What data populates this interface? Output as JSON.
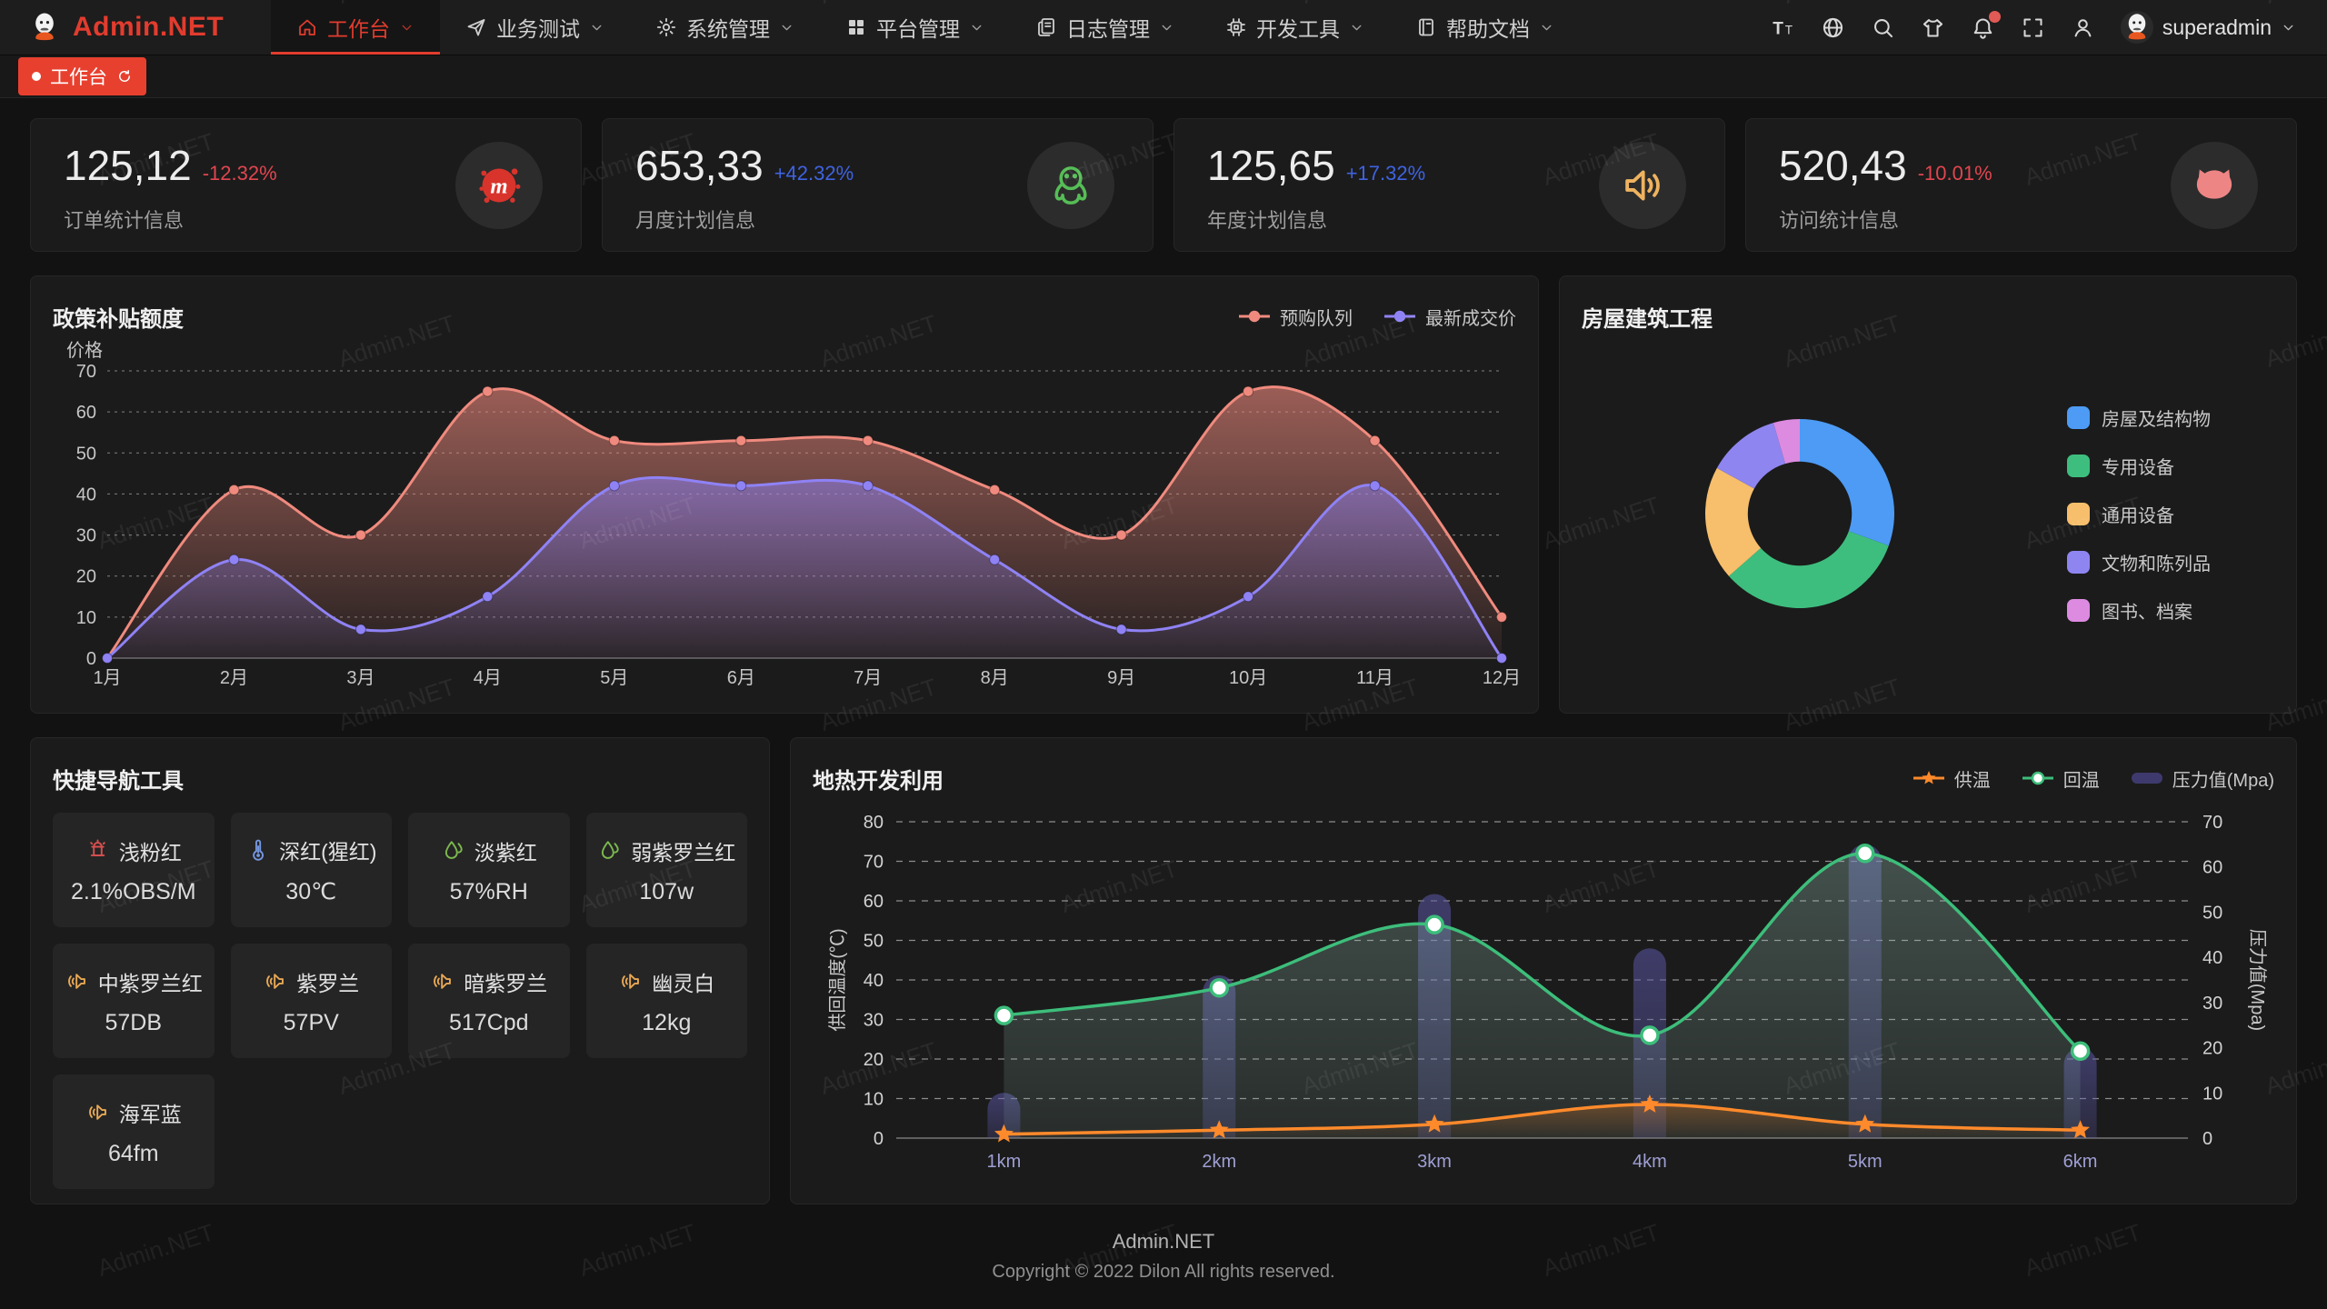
{
  "watermark": "Admin.NET",
  "topbar": {
    "brand": "Admin.NET",
    "menu": [
      {
        "id": "workbench",
        "label": "工作台",
        "icon": "home",
        "active": true
      },
      {
        "id": "business-test",
        "label": "业务测试",
        "icon": "send",
        "active": false
      },
      {
        "id": "system-mgmt",
        "label": "系统管理",
        "icon": "gear",
        "active": false
      },
      {
        "id": "platform-mgmt",
        "label": "平台管理",
        "icon": "grid",
        "active": false
      },
      {
        "id": "log-mgmt",
        "label": "日志管理",
        "icon": "copy-doc",
        "active": false
      },
      {
        "id": "dev-tools",
        "label": "开发工具",
        "icon": "chip",
        "active": false
      },
      {
        "id": "help-docs",
        "label": "帮助文档",
        "icon": "book",
        "active": false
      }
    ],
    "actions": [
      {
        "id": "font-size",
        "icon": "font-size",
        "badge": false
      },
      {
        "id": "language",
        "icon": "language",
        "badge": false
      },
      {
        "id": "search",
        "icon": "search",
        "badge": false
      },
      {
        "id": "theme",
        "icon": "theme-shirt",
        "badge": false
      },
      {
        "id": "notifications",
        "icon": "bell",
        "badge": true
      },
      {
        "id": "fullscreen",
        "icon": "fullscreen",
        "badge": false
      },
      {
        "id": "profile",
        "icon": "user",
        "badge": false
      }
    ],
    "user": "superadmin"
  },
  "tabbar": {
    "active_tab": "工作台"
  },
  "stat_cards": [
    {
      "id": "orders",
      "value": "125,12",
      "delta": "-12.32%",
      "trend": "down",
      "label": "订单统计信息",
      "icon": "meetup",
      "icon_color": "#d8342c"
    },
    {
      "id": "monthly-plan",
      "value": "653,33",
      "delta": "+42.32%",
      "trend": "up",
      "label": "月度计划信息",
      "icon": "qq",
      "icon_color": "#56bd56"
    },
    {
      "id": "yearly-plan",
      "value": "125,65",
      "delta": "+17.32%",
      "trend": "up",
      "label": "年度计划信息",
      "icon": "speaker",
      "icon_color": "#efb35f"
    },
    {
      "id": "visits",
      "value": "520,43",
      "delta": "-10.01%",
      "trend": "down",
      "label": "访问统计信息",
      "icon": "cat",
      "icon_color": "#ee8585"
    }
  ],
  "chart_data": [
    {
      "key": "area",
      "type": "area",
      "title": "政策补贴额度",
      "y_axis_name": "价格",
      "categories": [
        "1月",
        "2月",
        "3月",
        "4月",
        "5月",
        "6月",
        "7月",
        "8月",
        "9月",
        "10月",
        "11月",
        "12月"
      ],
      "ylim": [
        0,
        70
      ],
      "ystep": 10,
      "grid": "dashed",
      "legend_position": "top-right",
      "series": [
        {
          "name": "预购队列",
          "color": "#F08A7E",
          "values": [
            0,
            41,
            30,
            65,
            53,
            53,
            53,
            41,
            30,
            65,
            53,
            10
          ]
        },
        {
          "name": "最新成交价",
          "color": "#8F82F5",
          "values": [
            0,
            24,
            7,
            15,
            42,
            42,
            42,
            24,
            7,
            15,
            42,
            0
          ]
        }
      ]
    },
    {
      "key": "donut",
      "type": "pie",
      "title": "房屋建筑工程",
      "inner_radius_ratio": 0.55,
      "legend_position": "right",
      "items": [
        {
          "label": "房屋及结构物",
          "value": 30.5,
          "color": "#4D9BF4"
        },
        {
          "label": "专用设备",
          "value": 33,
          "color": "#3EBE7E"
        },
        {
          "label": "通用设备",
          "value": 19.5,
          "color": "#F7BE6B"
        },
        {
          "label": "文物和陈列品",
          "value": 12.5,
          "color": "#8F85F0"
        },
        {
          "label": "图书、档案",
          "value": 4.5,
          "color": "#DC8BE0"
        }
      ]
    },
    {
      "key": "dual",
      "type": "line+bar",
      "title": "地热开发利用",
      "categories": [
        "1km",
        "2km",
        "3km",
        "4km",
        "5km",
        "6km"
      ],
      "left_axis": {
        "name": "供回温度(℃)",
        "min": 0,
        "max": 80,
        "step": 10
      },
      "right_axis": {
        "name": "压力值(Mpa)",
        "min": 0,
        "max": 70,
        "step": 10
      },
      "grid": "dashed",
      "legend_position": "top-right",
      "series": [
        {
          "name": "供温",
          "type": "line",
          "axis": "left",
          "marker": "star",
          "color": "#FF8A2B",
          "values": [
            1,
            2,
            3.5,
            8.5,
            3.5,
            2
          ]
        },
        {
          "name": "回温",
          "type": "line",
          "axis": "left",
          "marker": "circle",
          "color": "#3DBE7B",
          "values": [
            31,
            38,
            54,
            26,
            72,
            22
          ]
        },
        {
          "name": "压力值(Mpa)",
          "type": "bar",
          "axis": "right",
          "color": "#3E3A6E",
          "bar_fill": "rgba(100,96,180,0.40)",
          "values": [
            10,
            36,
            54,
            42,
            65,
            20
          ]
        }
      ]
    }
  ],
  "quick_nav": {
    "title": "快捷导航工具",
    "items": [
      {
        "id": "light-pink",
        "name": "浅粉红",
        "value": "2.1%OBS/M",
        "icon": "hydrant",
        "icon_color": "#d85050"
      },
      {
        "id": "crimson",
        "name": "深红(猩红)",
        "value": "30℃",
        "icon": "thermometer",
        "icon_color": "#7596e0"
      },
      {
        "id": "pale-violet",
        "name": "淡紫红",
        "value": "57%RH",
        "icon": "drop",
        "icon_color": "#7cb84e"
      },
      {
        "id": "weak-violet-red",
        "name": "弱紫罗兰红",
        "value": "107w",
        "icon": "drop",
        "icon_color": "#7cb84e"
      },
      {
        "id": "medium-violet-red",
        "name": "中紫罗兰红",
        "value": "57DB",
        "icon": "speaker-left",
        "icon_color": "#e8a855"
      },
      {
        "id": "violet",
        "name": "紫罗兰",
        "value": "57PV",
        "icon": "speaker-left",
        "icon_color": "#e8a855"
      },
      {
        "id": "dark-violet",
        "name": "暗紫罗兰",
        "value": "517Cpd",
        "icon": "speaker-left",
        "icon_color": "#e8a855"
      },
      {
        "id": "ghost-white",
        "name": "幽灵白",
        "value": "12kg",
        "icon": "speaker-left",
        "icon_color": "#e8a855"
      },
      {
        "id": "navy-blue",
        "name": "海军蓝",
        "value": "64fm",
        "icon": "speaker-left",
        "icon_color": "#e8a855"
      }
    ]
  },
  "footer": {
    "line1": "Admin.NET",
    "line2": "Copyright © 2022 Dilon All rights reserved."
  }
}
